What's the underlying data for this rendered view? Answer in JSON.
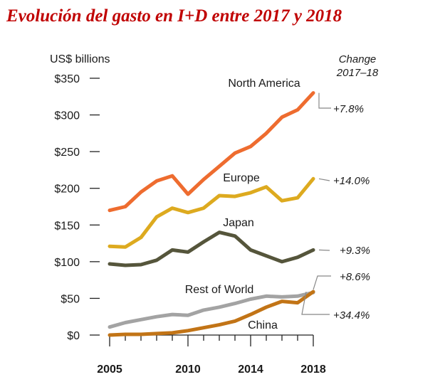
{
  "chart_data": {
    "type": "line",
    "title": "Evolución del gasto en I+D entre 2017 y 2018",
    "ylabel": "US$ billions",
    "xlabel": "",
    "change_header": [
      "Change",
      "2017–18"
    ],
    "ylim": [
      0,
      350
    ],
    "xlim": [
      2005,
      2018
    ],
    "yticks": [
      0,
      50,
      100,
      150,
      200,
      250,
      300,
      350
    ],
    "ytick_labels": [
      "$0",
      "$50",
      "$100",
      "$150",
      "$200",
      "$250",
      "$300",
      "$350"
    ],
    "xticks": [
      2005,
      2010,
      2014,
      2018
    ],
    "xtick_labels": [
      "2005",
      "2010",
      "2014",
      "2018"
    ],
    "x": [
      2005,
      2006,
      2007,
      2008,
      2009,
      2010,
      2011,
      2012,
      2013,
      2014,
      2015,
      2016,
      2017,
      2018
    ],
    "series": [
      {
        "name": "North America",
        "color": "#EE6C2F",
        "change": "+7.8%",
        "values": [
          170,
          175,
          195,
          210,
          217,
          192,
          212,
          230,
          248,
          257,
          275,
          297,
          307,
          330
        ]
      },
      {
        "name": "Europe",
        "color": "#DDAA1F",
        "change": "+14.0%",
        "values": [
          121,
          120,
          133,
          161,
          173,
          167,
          173,
          190,
          189,
          194,
          202,
          183,
          187,
          213
        ]
      },
      {
        "name": "Japan",
        "color": "#55553B",
        "change": "+9.3%",
        "values": [
          97,
          95,
          96,
          102,
          116,
          113,
          127,
          140,
          135,
          116,
          108,
          100,
          106,
          116
        ]
      },
      {
        "name": "Rest of World",
        "color": "#A3A3A3",
        "change": "+8.6%",
        "values": [
          11,
          17,
          21,
          25,
          28,
          27,
          34,
          38,
          43,
          49,
          53,
          52,
          53,
          58
        ]
      },
      {
        "name": "China",
        "color": "#C27416",
        "change": "+34.4%",
        "values": [
          0,
          1,
          1,
          2,
          3,
          6,
          10,
          14,
          19,
          28,
          38,
          46,
          44,
          59
        ]
      }
    ]
  }
}
